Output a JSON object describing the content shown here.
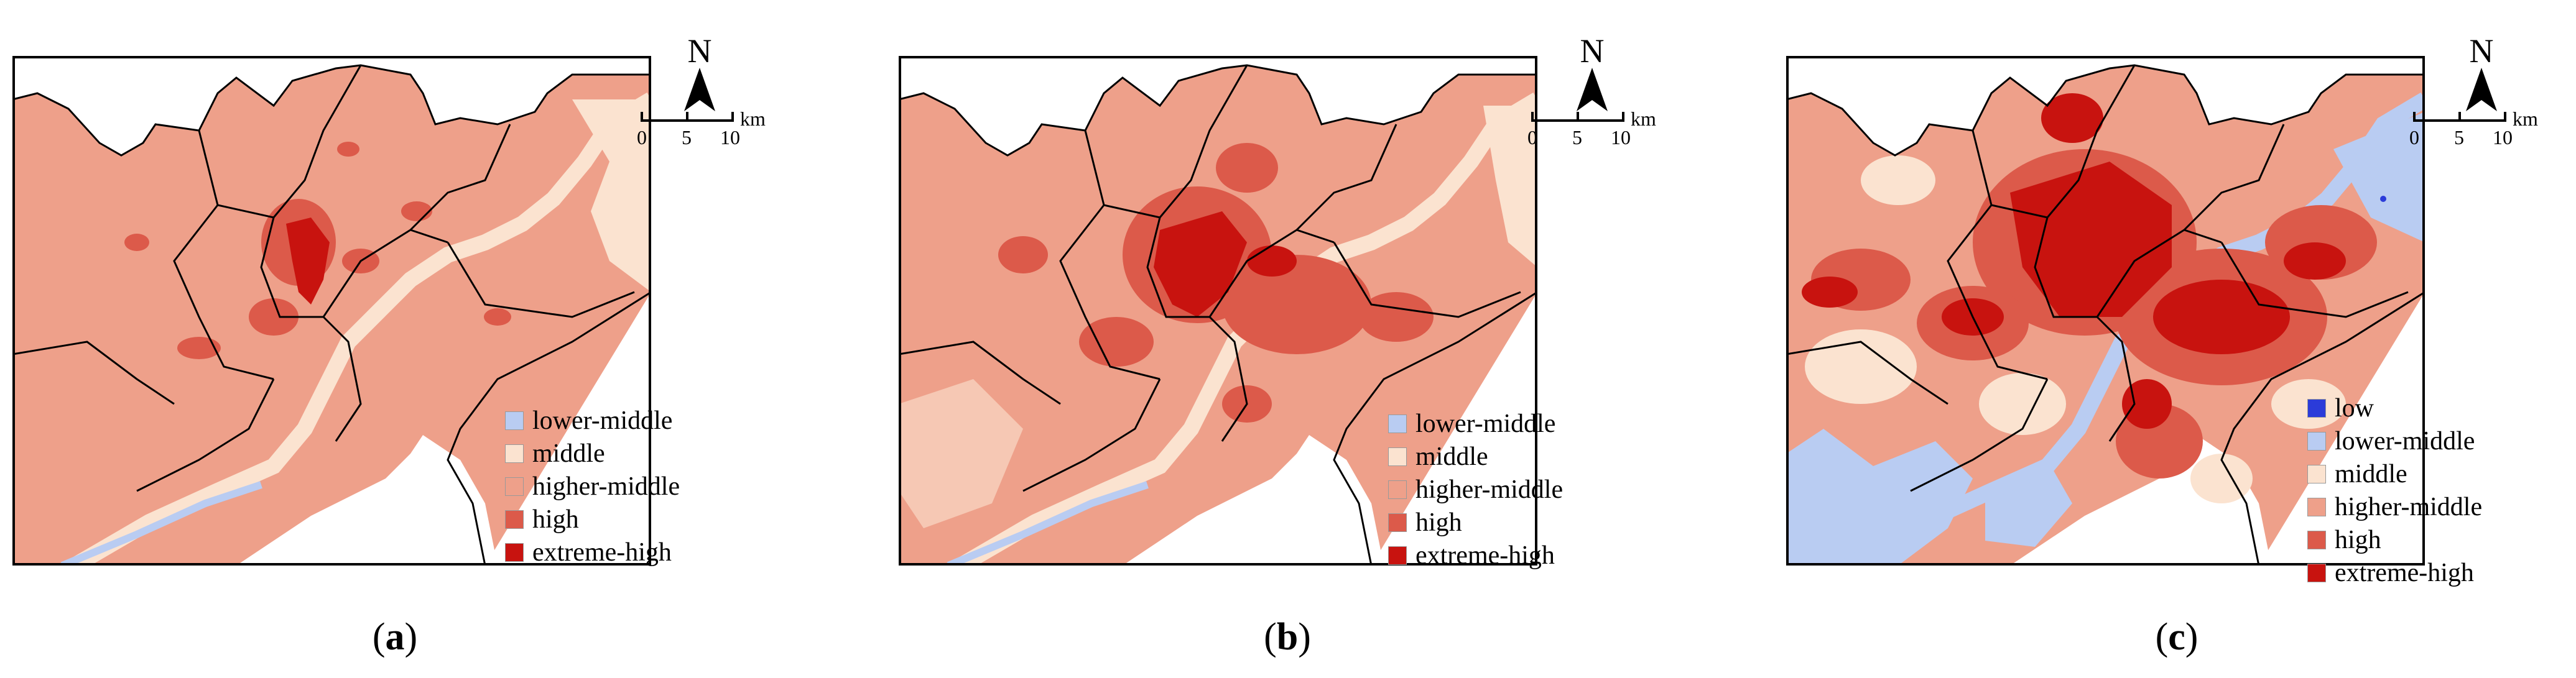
{
  "legend_colors": {
    "low": "#2b3bd9",
    "lower-middle": "#b9ccf2",
    "middle": "#fbe3d0",
    "higher-middle": "#eea08a",
    "high": "#dc5a4a",
    "extreme-high": "#c8130f"
  },
  "panels": [
    {
      "caption_open": "(",
      "caption_letter": "a",
      "caption_close": ")",
      "north_label": "N",
      "scale": {
        "t0": "0",
        "t1": "5",
        "t2": "10",
        "unit": "km"
      },
      "legend": [
        {
          "key": "lower-middle",
          "label": "lower-middle"
        },
        {
          "key": "middle",
          "label": "middle"
        },
        {
          "key": "higher-middle",
          "label": "higher-middle"
        },
        {
          "key": "high",
          "label": "high"
        },
        {
          "key": "extreme-high",
          "label": "extreme-high"
        }
      ]
    },
    {
      "caption_open": "(",
      "caption_letter": "b",
      "caption_close": ")",
      "north_label": "N",
      "scale": {
        "t0": "0",
        "t1": "5",
        "t2": "10",
        "unit": "km"
      },
      "legend": [
        {
          "key": "lower-middle",
          "label": "lower-middle"
        },
        {
          "key": "middle",
          "label": "middle"
        },
        {
          "key": "higher-middle",
          "label": "higher-middle"
        },
        {
          "key": "high",
          "label": "high"
        },
        {
          "key": "extreme-high",
          "label": "extreme-high"
        }
      ]
    },
    {
      "caption_open": "(",
      "caption_letter": "c",
      "caption_close": ")",
      "north_label": "N",
      "scale": {
        "t0": "0",
        "t1": "5",
        "t2": "10",
        "unit": "km"
      },
      "legend": [
        {
          "key": "low",
          "label": "low"
        },
        {
          "key": "lower-middle",
          "label": "lower-middle"
        },
        {
          "key": "middle",
          "label": "middle"
        },
        {
          "key": "higher-middle",
          "label": "higher-middle"
        },
        {
          "key": "high",
          "label": "high"
        },
        {
          "key": "extreme-high",
          "label": "extreme-high"
        }
      ]
    }
  ]
}
